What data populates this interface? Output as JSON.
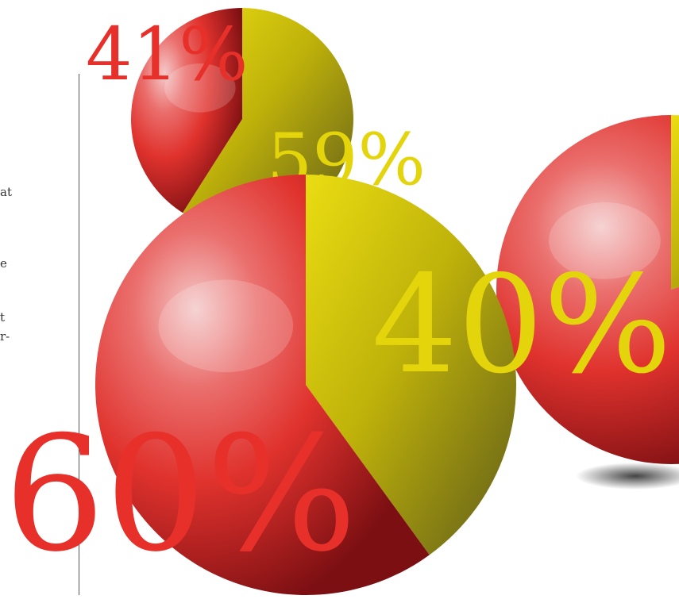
{
  "colors": {
    "red": "#e0322d",
    "yellow": "#e1d20b",
    "label_red": "#e8302a",
    "label_yellow": "#e3d40c"
  },
  "side_text": [
    "at",
    "e",
    "t",
    "r-"
  ],
  "chart_data": [
    {
      "type": "pie",
      "slices": [
        {
          "label": "41%",
          "value": 41,
          "color": "#e0322d"
        },
        {
          "label": "59%",
          "value": 59,
          "color": "#e1d20b"
        }
      ]
    },
    {
      "type": "pie",
      "slices": [
        {
          "label": "60%",
          "value": 60,
          "color": "#e0322d"
        },
        {
          "label": "40%",
          "value": 40,
          "color": "#e1d20b"
        }
      ]
    },
    {
      "type": "pie",
      "slices": [
        {
          "label": "",
          "value": 80,
          "color": "#e0322d"
        },
        {
          "label": "",
          "value": 20,
          "color": "#e1d20b"
        }
      ]
    }
  ]
}
